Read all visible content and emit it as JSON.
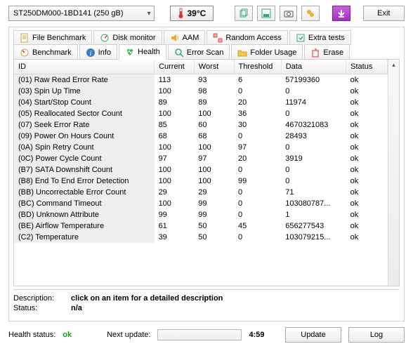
{
  "top": {
    "drive_label": "ST250DM000-1BD141 (250 gB)",
    "temperature": "39°C",
    "exit_label": "Exit"
  },
  "tabs_row1": [
    {
      "label": "File Benchmark",
      "icon": "file"
    },
    {
      "label": "Disk monitor",
      "icon": "monitor"
    },
    {
      "label": "AAM",
      "icon": "speaker"
    },
    {
      "label": "Random Access",
      "icon": "random"
    },
    {
      "label": "Extra tests",
      "icon": "extra"
    }
  ],
  "tabs_row2": [
    {
      "label": "Benchmark",
      "icon": "bench"
    },
    {
      "label": "Info",
      "icon": "info"
    },
    {
      "label": "Health",
      "icon": "health",
      "active": true
    },
    {
      "label": "Error Scan",
      "icon": "search"
    },
    {
      "label": "Folder Usage",
      "icon": "folder"
    },
    {
      "label": "Erase",
      "icon": "erase"
    }
  ],
  "table": {
    "columns": [
      "ID",
      "Current",
      "Worst",
      "Threshold",
      "Data",
      "Status"
    ],
    "col_widths": [
      "190px",
      "54px",
      "54px",
      "64px",
      "88px",
      "56px"
    ],
    "rows": [
      [
        "(01) Raw Read Error Rate",
        "113",
        "93",
        "6",
        "57199360",
        "ok"
      ],
      [
        "(03) Spin Up Time",
        "100",
        "98",
        "0",
        "0",
        "ok"
      ],
      [
        "(04) Start/Stop Count",
        "89",
        "89",
        "20",
        "11974",
        "ok"
      ],
      [
        "(05) Reallocated Sector Count",
        "100",
        "100",
        "36",
        "0",
        "ok"
      ],
      [
        "(07) Seek Error Rate",
        "85",
        "60",
        "30",
        "4670321083",
        "ok"
      ],
      [
        "(09) Power On Hours Count",
        "68",
        "68",
        "0",
        "28493",
        "ok"
      ],
      [
        "(0A) Spin Retry Count",
        "100",
        "100",
        "97",
        "0",
        "ok"
      ],
      [
        "(0C) Power Cycle Count",
        "97",
        "97",
        "20",
        "3919",
        "ok"
      ],
      [
        "(B7) SATA Downshift Count",
        "100",
        "100",
        "0",
        "0",
        "ok"
      ],
      [
        "(B8) End To End Error Detection",
        "100",
        "100",
        "99",
        "0",
        "ok"
      ],
      [
        "(BB) Uncorrectable Error Count",
        "29",
        "29",
        "0",
        "71",
        "ok"
      ],
      [
        "(BC) Command Timeout",
        "100",
        "99",
        "0",
        "103080787...",
        "ok"
      ],
      [
        "(BD) Unknown Attribute",
        "99",
        "99",
        "0",
        "1",
        "ok"
      ],
      [
        "(BE) Airflow Temperature",
        "61",
        "50",
        "45",
        "656277543",
        "ok"
      ],
      [
        "(C2) Temperature",
        "39",
        "50",
        "0",
        "103079215...",
        "ok"
      ]
    ]
  },
  "desc": {
    "description_label": "Description:",
    "description_value": "click on an item for a detailed description",
    "status_label": "Status:",
    "status_value": "n/a"
  },
  "bottom": {
    "health_label": "Health status:",
    "health_value": "ok",
    "next_update_label": "Next update:",
    "timer": "4:59",
    "update_btn": "Update",
    "log_btn": "Log"
  },
  "colors": {
    "ok": "#1a9a1a",
    "border": "#cfcfcf",
    "header_bg": "#f0f0f0"
  }
}
